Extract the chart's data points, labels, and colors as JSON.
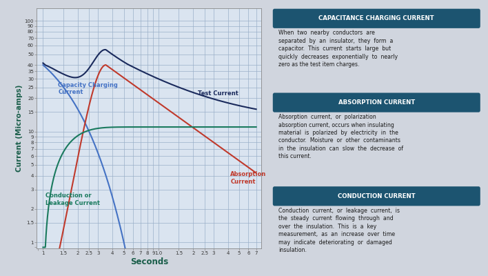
{
  "bg_color": "#d0d5de",
  "plot_bg": "#dae4f0",
  "grid_color": "#9aafc8",
  "x_label": "Seconds",
  "y_label": "Current (Micro-amps)",
  "header_color": "#1c5470",
  "header_text_color": "#ffffff",
  "body_text_color": "#1a1a1a",
  "header1": "CAPACITANCE CHARGING CURRENT",
  "body1": "When  two  nearby  conductors  are\nseparated  by  an  insulator,  they  form  a\ncapacitor.  This  current  starts  large  but\nquickly  decreases  exponentially  to  nearly\nzero as the test item charges.",
  "header2": "ABSORPTION CURRENT",
  "body2": "Absorption  current,  or  polarization\nabsorption current, occurs when insulating\nmaterial  is  polarized  by  electricity  in  the\nconductor.  Moisture  or  other  contaminants\nin  the  insulation  can  slow  the  decrease  of\nthis current.",
  "header3": "CONDUCTION CURRENT",
  "body3": "Conduction  current,  or  leakage  current,  is\nthe  steady  current  flowing  through  and\nover  the  insulation.  This  is  a  key\nmeasurement,  as  an  increase  over  time\nmay  indicate  deteriorating  or  damaged\ninsulation.",
  "cap_color": "#4472c4",
  "abs_color": "#c0392b",
  "cond_color": "#1a7a5e",
  "test_color": "#1a2a5c",
  "cap_label": "Capacity Charging\nCurrent",
  "abs_label": "Absorption\nCurrent",
  "cond_label": "Conduction or\nLeakage Current",
  "test_label": "Test Current",
  "x_positions": [
    1,
    1.5,
    2,
    2.5,
    3,
    4,
    5,
    6,
    7,
    8,
    9,
    10,
    15,
    20,
    25,
    30,
    40,
    50,
    60,
    70
  ],
  "x_labels": [
    "1",
    "1.5",
    "2",
    "2.5",
    "3",
    "4",
    "5",
    "6",
    "7",
    "8",
    "9",
    "1.0",
    "1.5",
    "2",
    "2.5",
    "3",
    "4",
    "5",
    "6",
    "7"
  ],
  "y_positions": [
    1,
    1.5,
    2,
    3,
    4,
    5,
    6,
    7,
    8,
    9,
    10,
    15,
    20,
    25,
    30,
    35,
    40,
    50,
    60,
    70,
    80,
    90,
    100
  ],
  "y_labels": [
    "1",
    "1.5",
    "2",
    "3",
    "4",
    "5",
    "6",
    "7",
    "8",
    "9",
    "10",
    "15",
    "20",
    "25",
    "30",
    "35",
    "40",
    "50",
    "60",
    "70",
    "80",
    "90",
    "100"
  ]
}
